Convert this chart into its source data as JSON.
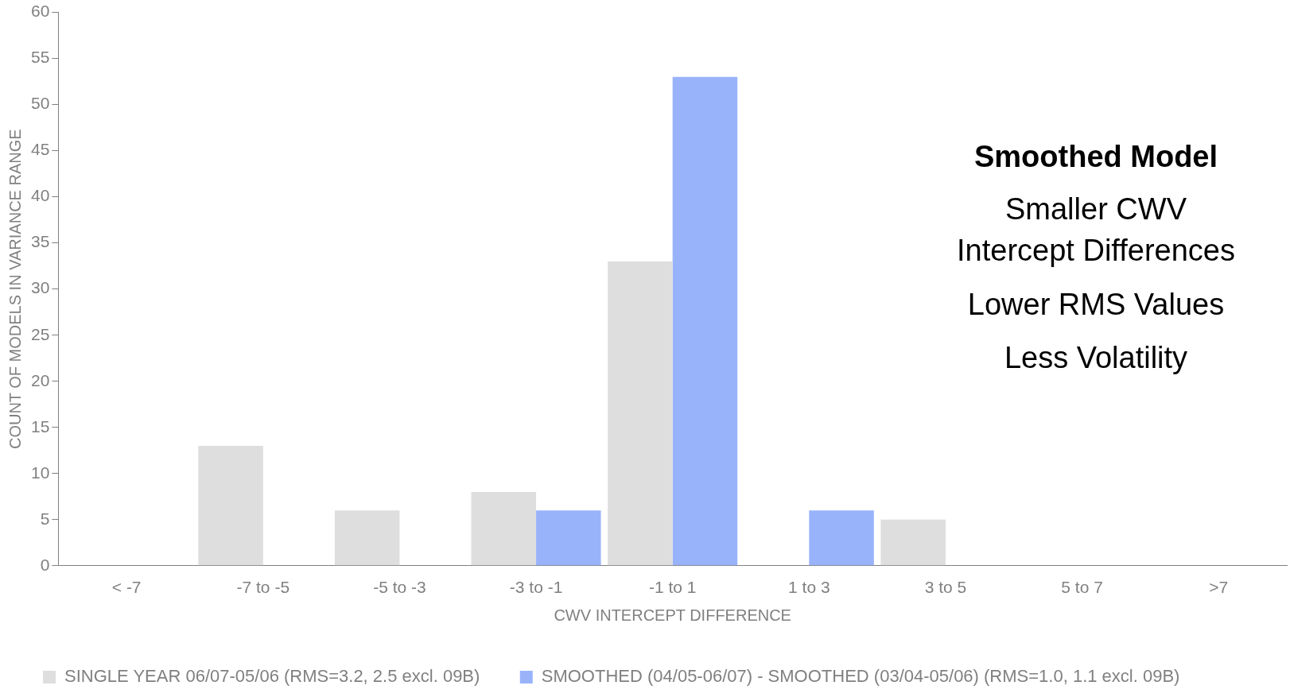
{
  "chart_data": {
    "type": "bar",
    "xlabel": "CWV INTERCEPT DIFFERENCE",
    "ylabel": "COUNT OF MODELS IN VARIANCE RANGE",
    "categories": [
      "< -7",
      "-7 to -5",
      "-5 to -3",
      "-3 to -1",
      "-1 to 1",
      "1 to 3",
      "3 to 5",
      "5 to 7",
      ">7"
    ],
    "series": [
      {
        "name": "SINGLE YEAR 06/07-05/06 (RMS=3.2, 2.5 excl. 09B)",
        "color": "#dedede",
        "values": [
          0,
          13,
          6,
          8,
          33,
          0,
          5,
          0,
          0
        ]
      },
      {
        "name": "SMOOTHED (04/05-06/07) - SMOOTHED (03/04-05/06) (RMS=1.0, 1.1 excl. 09B)",
        "color": "#99b3fb",
        "values": [
          0,
          0,
          0,
          6,
          53,
          6,
          0,
          0,
          0
        ]
      }
    ],
    "ylim": [
      0,
      60
    ],
    "yticks": [
      0,
      5,
      10,
      15,
      20,
      25,
      30,
      35,
      40,
      45,
      50,
      55,
      60
    ],
    "grid": false,
    "legend": "bottom",
    "annotations": [
      "Smoothed Model",
      "Smaller CWV",
      "Intercept Differences",
      "Lower RMS Values",
      "Less Volatility"
    ]
  }
}
